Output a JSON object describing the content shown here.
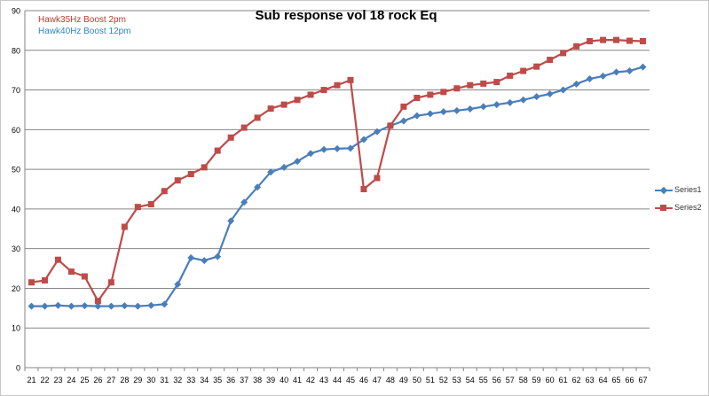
{
  "chart_data": {
    "type": "line",
    "title": "Sub response vol 18 rock Eq",
    "annotations": [
      {
        "text": "Hawk35Hz Boost 2pm",
        "color": "#c0392b"
      },
      {
        "text": "Hawk40Hz Boost 12pm",
        "color": "#2e86c1"
      }
    ],
    "x": [
      21,
      22,
      23,
      24,
      25,
      26,
      27,
      28,
      29,
      30,
      31,
      32,
      33,
      34,
      35,
      36,
      37,
      38,
      39,
      40,
      41,
      42,
      43,
      44,
      45,
      46,
      47,
      48,
      49,
      50,
      51,
      52,
      53,
      54,
      55,
      56,
      57,
      58,
      59,
      60,
      61,
      62,
      63,
      64,
      65,
      66,
      67
    ],
    "ylim": [
      0,
      90
    ],
    "yticks": [
      0,
      10,
      20,
      30,
      40,
      50,
      60,
      70,
      80,
      90
    ],
    "grid": true,
    "legend_position": "right",
    "series": [
      {
        "name": "Series1",
        "color": "#4a7ebb",
        "marker": "diamond",
        "values": [
          15.5,
          15.5,
          15.7,
          15.5,
          15.6,
          15.5,
          15.5,
          15.6,
          15.5,
          15.7,
          16.0,
          21.0,
          27.7,
          27.0,
          28.0,
          37.0,
          41.7,
          45.5,
          49.3,
          50.5,
          52.0,
          54.0,
          55.0,
          55.2,
          55.3,
          57.5,
          59.5,
          61.0,
          62.2,
          63.5,
          64.0,
          64.5,
          64.8,
          65.2,
          65.8,
          66.3,
          66.8,
          67.5,
          68.3,
          69.0,
          70.0,
          71.5,
          72.8,
          73.5,
          74.5,
          74.8,
          75.8
        ]
      },
      {
        "name": "Series2",
        "color": "#be4b48",
        "marker": "square",
        "values": [
          21.5,
          22.0,
          27.2,
          24.2,
          23.0,
          16.8,
          21.5,
          35.5,
          40.5,
          41.2,
          44.5,
          47.2,
          48.8,
          50.5,
          54.7,
          58.0,
          60.5,
          63.0,
          65.3,
          66.3,
          67.5,
          68.8,
          70.0,
          71.2,
          72.5,
          45.0,
          47.8,
          61.0,
          65.8,
          68.0,
          68.8,
          69.5,
          70.4,
          71.2,
          71.6,
          72.0,
          73.6,
          74.8,
          75.9,
          77.6,
          79.3,
          81.0,
          82.3,
          82.6,
          82.6,
          82.4,
          82.3
        ]
      }
    ]
  }
}
